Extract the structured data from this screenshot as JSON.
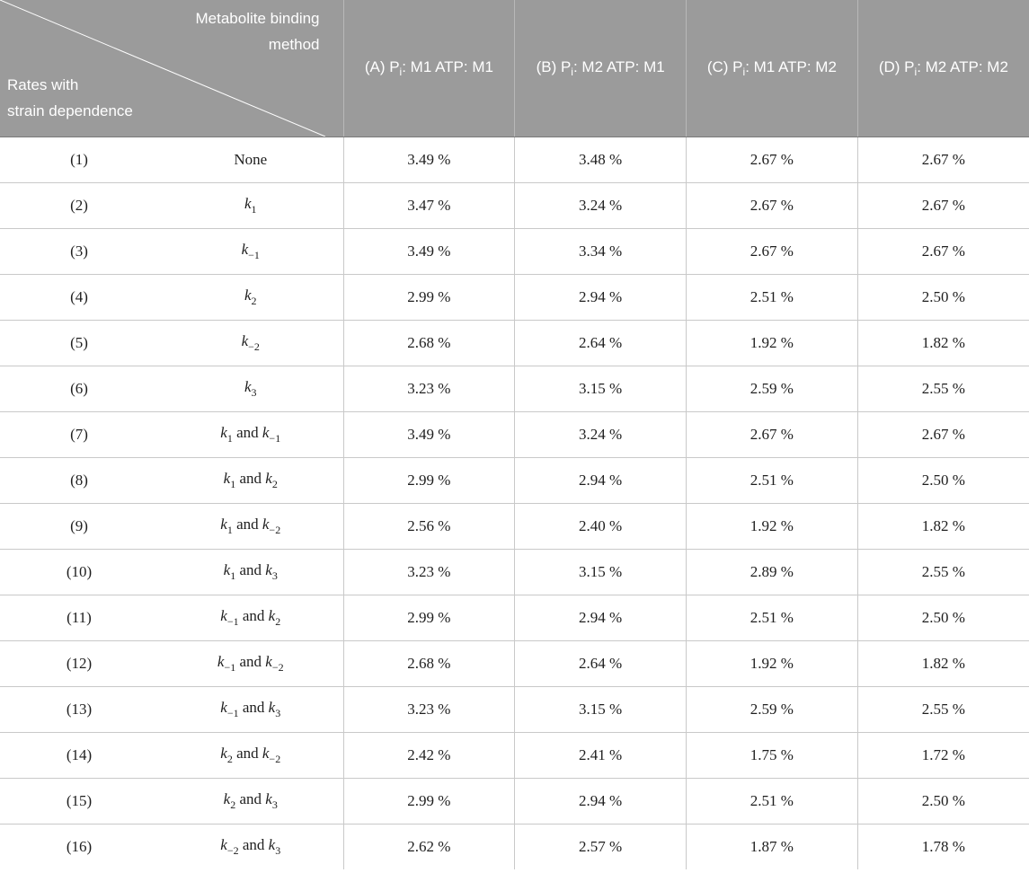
{
  "header": {
    "corner_top": [
      "Metabolite binding",
      "method"
    ],
    "corner_bottom": [
      "Rates with",
      "strain dependence"
    ],
    "columns": [
      {
        "pre": "(A) P",
        "sub": "i",
        "post": ": M1 ATP: M1"
      },
      {
        "pre": "(B) P",
        "sub": "i",
        "post": ": M2 ATP: M1"
      },
      {
        "pre": "(C) P",
        "sub": "i",
        "post": ": M1 ATP: M2"
      },
      {
        "pre": "(D) P",
        "sub": "i",
        "post": ": M2 ATP: M2"
      }
    ]
  },
  "rows": [
    {
      "id": "(1)",
      "rate": [
        {
          "t": "None"
        }
      ],
      "values": [
        "3.49 %",
        "3.48 %",
        "2.67 %",
        "2.67 %"
      ]
    },
    {
      "id": "(2)",
      "rate": [
        {
          "k": "k",
          "s": "1"
        }
      ],
      "values": [
        "3.47 %",
        "3.24 %",
        "2.67 %",
        "2.67 %"
      ]
    },
    {
      "id": "(3)",
      "rate": [
        {
          "k": "k",
          "s": "−1"
        }
      ],
      "values": [
        "3.49 %",
        "3.34 %",
        "2.67 %",
        "2.67 %"
      ]
    },
    {
      "id": "(4)",
      "rate": [
        {
          "k": "k",
          "s": "2"
        }
      ],
      "values": [
        "2.99 %",
        "2.94 %",
        "2.51 %",
        "2.50 %"
      ]
    },
    {
      "id": "(5)",
      "rate": [
        {
          "k": "k",
          "s": "−2"
        }
      ],
      "values": [
        "2.68 %",
        "2.64 %",
        "1.92 %",
        "1.82 %"
      ]
    },
    {
      "id": "(6)",
      "rate": [
        {
          "k": "k",
          "s": "3"
        }
      ],
      "values": [
        "3.23 %",
        "3.15 %",
        "2.59 %",
        "2.55 %"
      ]
    },
    {
      "id": "(7)",
      "rate": [
        {
          "k": "k",
          "s": "1"
        },
        {
          "t": " and "
        },
        {
          "k": "k",
          "s": "−1"
        }
      ],
      "values": [
        "3.49 %",
        "3.24 %",
        "2.67 %",
        "2.67 %"
      ]
    },
    {
      "id": "(8)",
      "rate": [
        {
          "k": "k",
          "s": "1"
        },
        {
          "t": " and "
        },
        {
          "k": "k",
          "s": "2"
        }
      ],
      "values": [
        "2.99 %",
        "2.94 %",
        "2.51 %",
        "2.50 %"
      ]
    },
    {
      "id": "(9)",
      "rate": [
        {
          "k": "k",
          "s": "1"
        },
        {
          "t": " and "
        },
        {
          "k": "k",
          "s": "−2"
        }
      ],
      "values": [
        "2.56 %",
        "2.40 %",
        "1.92 %",
        "1.82 %"
      ]
    },
    {
      "id": "(10)",
      "rate": [
        {
          "k": "k",
          "s": "1"
        },
        {
          "t": " and "
        },
        {
          "k": "k",
          "s": "3"
        }
      ],
      "values": [
        "3.23 %",
        "3.15 %",
        "2.89 %",
        "2.55 %"
      ]
    },
    {
      "id": "(11)",
      "rate": [
        {
          "k": "k",
          "s": "−1"
        },
        {
          "t": " and "
        },
        {
          "k": "k",
          "s": "2"
        }
      ],
      "values": [
        "2.99 %",
        "2.94 %",
        "2.51 %",
        "2.50 %"
      ]
    },
    {
      "id": "(12)",
      "rate": [
        {
          "k": "k",
          "s": "−1"
        },
        {
          "t": " and "
        },
        {
          "k": "k",
          "s": "−2"
        }
      ],
      "values": [
        "2.68 %",
        "2.64 %",
        "1.92 %",
        "1.82 %"
      ]
    },
    {
      "id": "(13)",
      "rate": [
        {
          "k": "k",
          "s": "−1"
        },
        {
          "t": " and "
        },
        {
          "k": "k",
          "s": "3"
        }
      ],
      "values": [
        "3.23 %",
        "3.15 %",
        "2.59 %",
        "2.55 %"
      ]
    },
    {
      "id": "(14)",
      "rate": [
        {
          "k": "k",
          "s": "2"
        },
        {
          "t": " and "
        },
        {
          "k": "k",
          "s": "−2"
        }
      ],
      "values": [
        "2.42 %",
        "2.41 %",
        "1.75 %",
        "1.72 %"
      ]
    },
    {
      "id": "(15)",
      "rate": [
        {
          "k": "k",
          "s": "2"
        },
        {
          "t": " and "
        },
        {
          "k": "k",
          "s": "3"
        }
      ],
      "values": [
        "2.99 %",
        "2.94 %",
        "2.51 %",
        "2.50 %"
      ]
    },
    {
      "id": "(16)",
      "rate": [
        {
          "k": "k",
          "s": "−2"
        },
        {
          "t": " and "
        },
        {
          "k": "k",
          "s": "3"
        }
      ],
      "values": [
        "2.62 %",
        "2.57 %",
        "1.87 %",
        "1.78 %"
      ]
    }
  ]
}
